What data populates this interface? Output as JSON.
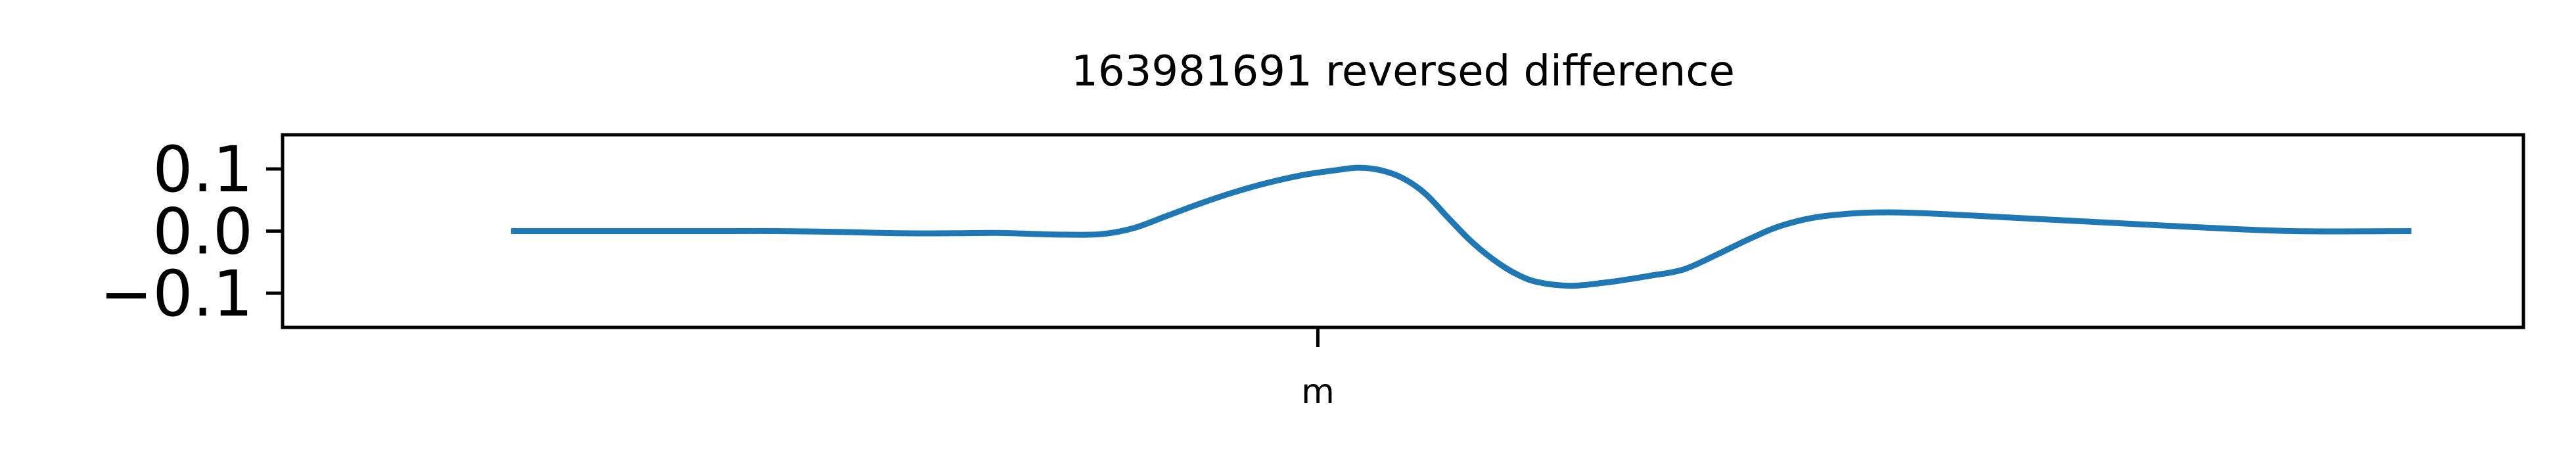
{
  "chart_data": {
    "type": "line",
    "title": "163981691 reversed difference",
    "xlabel": "",
    "ylabel": "",
    "xlim": [
      0,
      1
    ],
    "ylim": [
      -0.155,
      0.155
    ],
    "yticks": [
      0.1,
      0.0,
      -0.1
    ],
    "ytick_labels": [
      "0.1",
      "0.0",
      "−0.1"
    ],
    "xticks": [
      0.462
    ],
    "xtick_labels": [
      "m"
    ],
    "grid": false,
    "series": [
      {
        "color": "#1f77b4",
        "x": [
          0.102,
          0.15,
          0.2,
          0.22,
          0.25,
          0.275,
          0.3,
          0.32,
          0.345,
          0.365,
          0.38,
          0.395,
          0.41,
          0.425,
          0.44,
          0.455,
          0.47,
          0.48,
          0.49,
          0.5,
          0.51,
          0.52,
          0.53,
          0.54,
          0.55,
          0.56,
          0.575,
          0.59,
          0.6,
          0.61,
          0.625,
          0.64,
          0.655,
          0.67,
          0.69,
          0.72,
          0.77,
          0.85,
          0.95,
          0.897
        ],
        "y": [
          0.0,
          0.0,
          0.0,
          0.0,
          -0.0015,
          -0.0035,
          -0.0035,
          -0.003,
          -0.0055,
          -0.005,
          0.005,
          0.025,
          0.045,
          0.063,
          0.078,
          0.09,
          0.098,
          0.102,
          0.098,
          0.085,
          0.06,
          0.022,
          -0.015,
          -0.045,
          -0.068,
          -0.082,
          -0.088,
          -0.083,
          -0.078,
          -0.072,
          -0.062,
          -0.038,
          -0.012,
          0.01,
          0.025,
          0.03,
          0.022,
          0.007,
          0.0,
          0.0
        ]
      }
    ]
  }
}
